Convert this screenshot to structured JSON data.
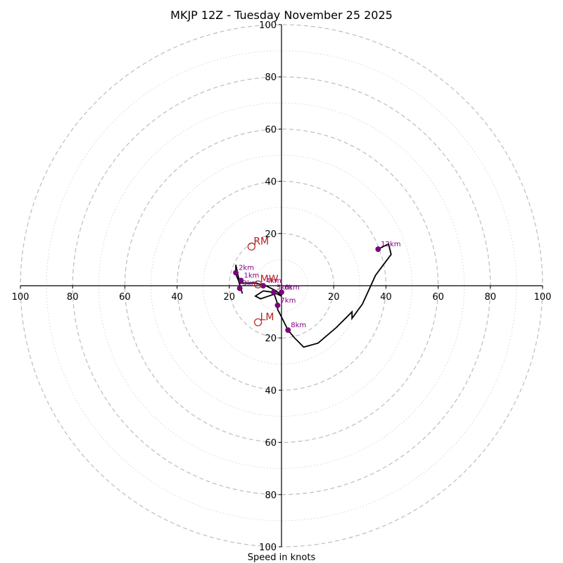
{
  "chart_data": {
    "type": "scatter",
    "title": "MKJP 12Z - Tuesday November 25 2025",
    "xlabel": "Speed in knots",
    "ylabel": "",
    "xlim": [
      -100,
      100
    ],
    "ylim": [
      -100,
      100
    ],
    "rings_major": [
      20,
      40,
      60,
      80,
      100
    ],
    "rings_minor": [
      10,
      30,
      50,
      70,
      90
    ],
    "x_ticks": [
      "100",
      "80",
      "60",
      "40",
      "20",
      "20",
      "40",
      "60",
      "80",
      "100"
    ],
    "x_tick_values": [
      -100,
      -80,
      -60,
      -40,
      -20,
      20,
      40,
      60,
      80,
      100
    ],
    "y_ticks": [
      "100",
      "80",
      "60",
      "40",
      "20",
      "20",
      "40",
      "60",
      "80",
      "100"
    ],
    "y_tick_values": [
      100,
      80,
      60,
      40,
      20,
      -20,
      -40,
      -60,
      -80,
      -100
    ],
    "hodograph_trace": [
      [
        -15,
        -3
      ],
      [
        -16.5,
        2
      ],
      [
        -17.5,
        4.5
      ],
      [
        -17.5,
        8
      ],
      [
        -16,
        1
      ],
      [
        -12,
        1
      ],
      [
        -10,
        1
      ],
      [
        -6,
        0
      ],
      [
        -2,
        -2
      ],
      [
        0,
        -4
      ],
      [
        -2,
        -3
      ],
      [
        -5,
        -4
      ],
      [
        -8,
        -5
      ],
      [
        -10,
        -4
      ],
      [
        -7,
        -2
      ],
      [
        -3,
        -2.5
      ],
      [
        -1.5,
        -7
      ],
      [
        -1.5,
        -9
      ],
      [
        0,
        -12
      ],
      [
        2.5,
        -17
      ],
      [
        5,
        -20
      ],
      [
        8.5,
        -23.5
      ],
      [
        14,
        -22
      ],
      [
        21,
        -16
      ],
      [
        27,
        -10
      ],
      [
        27,
        -12.5
      ],
      [
        31,
        -7
      ],
      [
        36,
        4
      ],
      [
        39,
        8
      ],
      [
        42,
        12
      ],
      [
        41,
        16
      ],
      [
        37,
        14
      ]
    ],
    "height_markers": [
      {
        "label": "2km",
        "x": -17.5,
        "y": 5
      },
      {
        "label": "1km",
        "x": -15.5,
        "y": 2
      },
      {
        "label": "3km",
        "x": -16,
        "y": -1
      },
      {
        "label": "4km",
        "x": -7,
        "y": 0
      },
      {
        "label": "5km",
        "x": -3,
        "y": -2.5
      },
      {
        "label": "6km",
        "x": 0,
        "y": -2.5
      },
      {
        "label": "7km",
        "x": -1.5,
        "y": -7.5
      },
      {
        "label": "8km",
        "x": 2.5,
        "y": -17
      },
      {
        "label": "12km",
        "x": 37,
        "y": 14
      }
    ],
    "storm_motion": [
      {
        "label": "RM",
        "x": -11.5,
        "y": 15
      },
      {
        "label": "MW",
        "x": -9,
        "y": 0.5
      },
      {
        "label": "LM",
        "x": -9,
        "y": -14
      }
    ]
  },
  "colors": {
    "trace": "#000000",
    "marker": "#800080",
    "storm_motion": "#b22222",
    "rings": "#bdbdbd"
  }
}
